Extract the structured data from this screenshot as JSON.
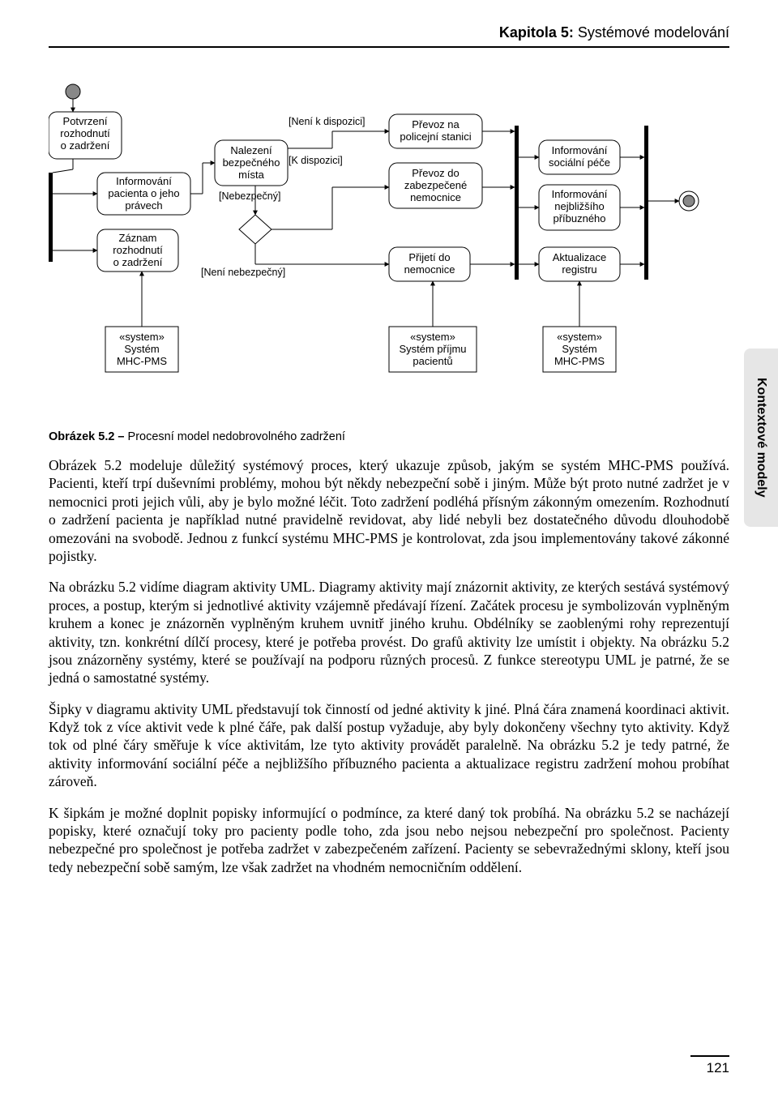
{
  "chapter": {
    "prefix": "Kapitola 5:",
    "title": "Systémové modelování"
  },
  "sideTab": "Kontextové modely",
  "pageNumber": "121",
  "figure": {
    "caption_bold": "Obrázek 5.2 – ",
    "caption_rest": "Procesní model nedobrovolného zadržení"
  },
  "diagram": {
    "nodes": {
      "confirm": {
        "label": "Potvrzení\nrozhodnutí\no zadržení"
      },
      "inform_rights": {
        "label": "Informování\npacienta o jeho\nprávech"
      },
      "record": {
        "label": "Záznam\nrozhodnutí\no zadržení"
      },
      "find_safe": {
        "label": "Nalezení\nbezpečného\nmísta"
      },
      "transfer_police": {
        "label": "Převoz na\npolicejní stanici"
      },
      "transfer_secure": {
        "label": "Převoz do\nzabezpečené\nnemocnice"
      },
      "admit": {
        "label": "Přijetí do\nnemocnice"
      },
      "inform_social": {
        "label": "Informování\nsociální péče"
      },
      "inform_family": {
        "label": "Informování\nnejbližšího\npříbuzného"
      },
      "update_reg": {
        "label": "Aktualizace\nregistru"
      },
      "sys1": {
        "label": "«system»\nSystém\nMHC-PMS"
      },
      "sys2": {
        "label": "«system»\nSystém příjmu\npacientů"
      },
      "sys3": {
        "label": "«system»\nSystém\nMHC-PMS"
      }
    },
    "edgeLabels": {
      "notAvail": "[Není k dispozici]",
      "avail": "[K dispozici]",
      "unsafe": "[Nebezpečný]",
      "safe": "[Není nebezpečný]"
    }
  },
  "paragraphs": [
    "Obrázek 5.2 modeluje důležitý systémový proces, který ukazuje způsob, jakým se systém MHC-PMS používá. Pacienti, kteří trpí duševními problémy, mohou být někdy nebezpeční sobě i jiným. Může být proto nutné zadržet je v nemocnici proti jejich vůli, aby je bylo možné léčit. Toto zadržení podléhá přísným zákonným omezením. Rozhodnutí o zadržení pacienta je například nutné pravidelně revidovat, aby lidé nebyli bez dostatečného důvodu dlouhodobě omezováni na svobodě. Jednou z funkcí systému MHC-PMS je kontrolovat, zda jsou implementovány takové zákonné pojistky.",
    "Na obrázku 5.2 vidíme diagram aktivity UML. Diagramy aktivity mají znázornit aktivity, ze kterých sestává systémový proces, a postup, kterým si jednotlivé aktivity vzájemně předávají řízení. Začátek procesu je symbolizován vyplněným kruhem a konec je znázorněn vyplněným kruhem uvnitř jiného kruhu. Obdélníky se zaoblenými rohy reprezentují aktivity, tzn. konkrétní dílčí procesy, které je potřeba provést. Do grafů aktivity lze umístit i objekty. Na obrázku 5.2 jsou znázorněny systémy, které se používají na podporu různých procesů. Z funkce stereotypu UML je patrné, že se jedná o samostatné systémy.",
    "Šipky v diagramu aktivity UML představují tok činností od jedné aktivity k jiné. Plná čára znamená koordinaci aktivit. Když tok z více aktivit vede k plné čáře, pak další postup vyžaduje, aby byly dokončeny všechny tyto aktivity. Když tok od plné čáry směřuje k více aktivitám, lze tyto aktivity provádět paralelně. Na obrázku 5.2 je tedy patrné, že aktivity informování sociální péče a nejbližšího příbuzného pacienta a aktualizace registru zadržení mohou probíhat zároveň.",
    "K šipkám je možné doplnit popisky informující o podmínce, za které daný tok probíhá. Na obrázku 5.2 se nacházejí popisky, které označují toky pro pacienty podle toho, zda jsou nebo nejsou nebezpeční pro společnost. Pacienty nebezpečné pro společnost je potřeba zadržet v zabezpečeném zařízení. Pacienty se sebevražednými sklony, kteří jsou tedy nebezpeční sobě samým, lze však zadržet na vhodném nemocničním oddělení."
  ]
}
